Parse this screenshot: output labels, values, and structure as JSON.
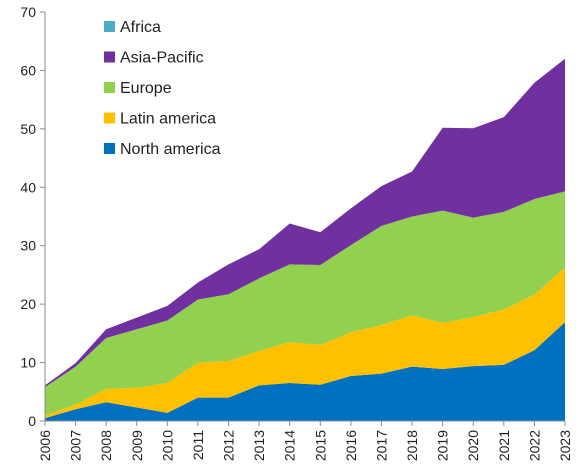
{
  "chart_data": {
    "type": "area",
    "stacked": true,
    "categories": [
      "2006",
      "2007",
      "2008",
      "2009",
      "2010",
      "2011",
      "2012",
      "2013",
      "2014",
      "2015",
      "2016",
      "2017",
      "2018",
      "2019",
      "2020",
      "2021",
      "2022",
      "2023"
    ],
    "series": [
      {
        "name": "North america",
        "color": "#0070C0",
        "values": [
          0.5,
          2.0,
          3.2,
          2.3,
          1.4,
          4.0,
          4.0,
          6.1,
          6.5,
          6.2,
          7.7,
          8.1,
          9.3,
          8.9,
          9.4,
          9.6,
          12.1,
          16.9
        ]
      },
      {
        "name": "Latin america",
        "color": "#FFC000",
        "values": [
          0.5,
          0.8,
          2.3,
          3.4,
          5.1,
          6.0,
          6.3,
          5.9,
          7.0,
          6.8,
          7.5,
          8.3,
          8.8,
          7.9,
          8.4,
          9.5,
          9.5,
          9.4
        ]
      },
      {
        "name": "Europe",
        "color": "#92D050",
        "values": [
          4.8,
          6.5,
          8.7,
          10.0,
          10.7,
          10.8,
          11.4,
          12.4,
          13.3,
          13.7,
          14.9,
          17.0,
          16.9,
          19.2,
          17.0,
          16.7,
          16.4,
          13.0
        ]
      },
      {
        "name": "Asia-Pacific",
        "color": "#7030A0",
        "values": [
          0.3,
          0.6,
          1.5,
          2.0,
          2.5,
          2.9,
          5.1,
          5.0,
          7.0,
          5.6,
          6.3,
          6.8,
          7.7,
          14.2,
          15.3,
          16.2,
          19.9,
          22.7
        ]
      },
      {
        "name": "Africa",
        "color": "#4BACC6",
        "values": [
          0,
          0,
          0,
          0,
          0,
          0,
          0,
          0,
          0,
          0,
          0,
          0,
          0,
          0,
          0,
          0,
          0,
          0
        ]
      }
    ],
    "legend_order": [
      "Africa",
      "Asia-Pacific",
      "Europe",
      "Latin america",
      "North america"
    ],
    "legend_position": "top-left",
    "ylim": [
      0,
      70
    ],
    "yticks": [
      "0",
      "10",
      "20",
      "30",
      "40",
      "50",
      "60",
      "70"
    ],
    "grid": false
  }
}
